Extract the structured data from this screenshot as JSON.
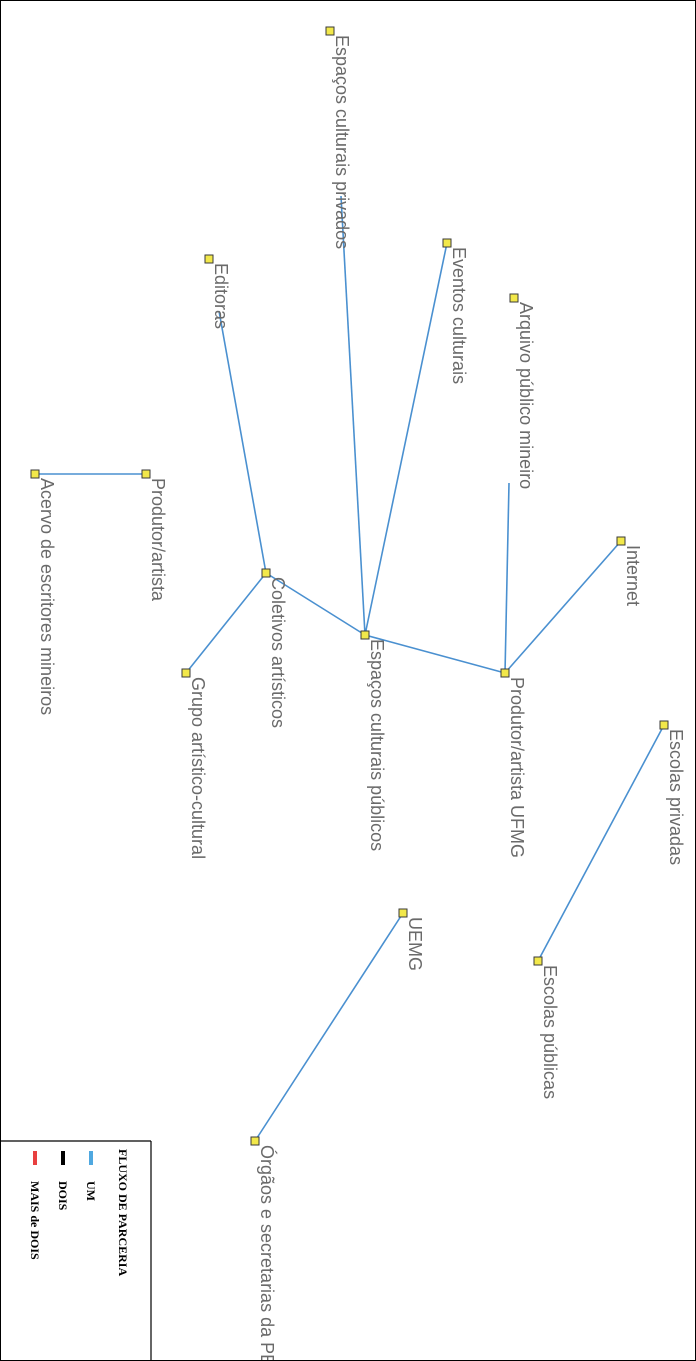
{
  "legend": {
    "title": "FLUXO DE PARCERIA",
    "items": [
      {
        "label": "UM",
        "color": "#4fa8e0"
      },
      {
        "label": "DOIS",
        "color": "#000000"
      },
      {
        "label": "MAIS de DOIS",
        "color": "#e84040"
      }
    ]
  },
  "colors": {
    "edge": "#4a90d0",
    "node_fill": "#f2e84a",
    "node_stroke": "#3a3a3a"
  },
  "nodes": [
    {
      "id": "esp_priv",
      "label": "Espaços culturais privados"
    },
    {
      "id": "eventos",
      "label": "Eventos culturais"
    },
    {
      "id": "editoras",
      "label": "Editoras"
    },
    {
      "id": "arquivo",
      "label": "Arquivo público mineiro"
    },
    {
      "id": "internet",
      "label": "Internet"
    },
    {
      "id": "produtor",
      "label": "Produtor/artista"
    },
    {
      "id": "acervo",
      "label": "Acervo de escritores mineiros"
    },
    {
      "id": "coletivos",
      "label": "Coletivos artísticos"
    },
    {
      "id": "esp_pub",
      "label": "Espaços culturais públicos"
    },
    {
      "id": "prod_ufmg",
      "label": "Produtor/artista UFMG"
    },
    {
      "id": "grupo",
      "label": "Grupo artístico-cultural"
    },
    {
      "id": "esc_priv",
      "label": "Escolas privadas"
    },
    {
      "id": "esc_pub",
      "label": "Escolas públicas"
    },
    {
      "id": "uemg",
      "label": "UEMG"
    },
    {
      "id": "orgaos",
      "label": "Órgãos e secretarias da PBH"
    }
  ],
  "edges": [
    {
      "from": "produtor",
      "to": "acervo"
    },
    {
      "from": "coletivos",
      "to": "editoras"
    },
    {
      "from": "coletivos",
      "to": "grupo"
    },
    {
      "from": "coletivos",
      "to": "esp_pub"
    },
    {
      "from": "esp_pub",
      "to": "esp_priv"
    },
    {
      "from": "esp_pub",
      "to": "eventos"
    },
    {
      "from": "esp_pub",
      "to": "prod_ufmg"
    },
    {
      "from": "prod_ufmg",
      "to": "arquivo"
    },
    {
      "from": "prod_ufmg",
      "to": "internet"
    },
    {
      "from": "esc_priv",
      "to": "esc_pub"
    },
    {
      "from": "uemg",
      "to": "orgaos"
    }
  ]
}
